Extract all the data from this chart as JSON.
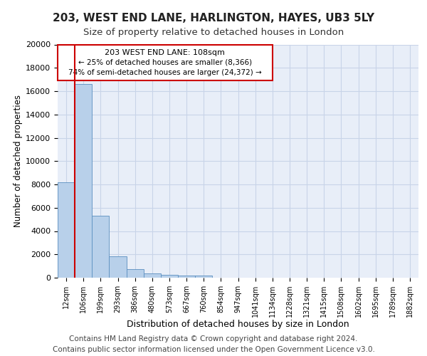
{
  "title1": "203, WEST END LANE, HARLINGTON, HAYES, UB3 5LY",
  "title2": "Size of property relative to detached houses in London",
  "xlabel": "Distribution of detached houses by size in London",
  "ylabel": "Number of detached properties",
  "bar_labels": [
    "12sqm",
    "106sqm",
    "199sqm",
    "293sqm",
    "386sqm",
    "480sqm",
    "573sqm",
    "667sqm",
    "760sqm",
    "854sqm",
    "947sqm",
    "1041sqm",
    "1134sqm",
    "1228sqm",
    "1321sqm",
    "1415sqm",
    "1508sqm",
    "1602sqm",
    "1695sqm",
    "1789sqm",
    "1882sqm"
  ],
  "bar_values": [
    8200,
    16600,
    5300,
    1850,
    750,
    350,
    250,
    200,
    200,
    0,
    0,
    0,
    0,
    0,
    0,
    0,
    0,
    0,
    0,
    0,
    0
  ],
  "bar_color": "#b8d0ea",
  "bar_edge_color": "#5a8fc0",
  "grid_color": "#c8d4e8",
  "background_color": "#e8eef8",
  "annotation_box_color": "#cc0000",
  "annotation_line1": "203 WEST END LANE: 108sqm",
  "annotation_line2": "← 25% of detached houses are smaller (8,366)",
  "annotation_line3": "74% of semi-detached houses are larger (24,372) →",
  "vline_color": "#cc0000",
  "footer1": "Contains HM Land Registry data © Crown copyright and database right 2024.",
  "footer2": "Contains public sector information licensed under the Open Government Licence v3.0.",
  "ylim": [
    0,
    20000
  ],
  "yticks": [
    0,
    2000,
    4000,
    6000,
    8000,
    10000,
    12000,
    14000,
    16000,
    18000,
    20000
  ],
  "title1_fontsize": 11,
  "title2_fontsize": 9.5,
  "xlabel_fontsize": 9,
  "ylabel_fontsize": 8.5,
  "tick_fontsize": 8,
  "xtick_fontsize": 7,
  "footer_fontsize": 7.5
}
